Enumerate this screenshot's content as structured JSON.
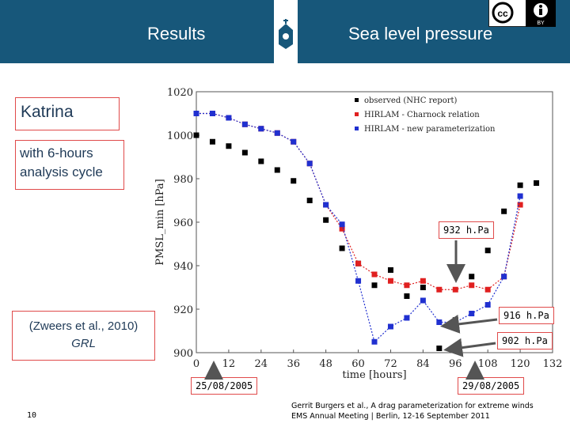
{
  "header": {
    "left_title": "Results",
    "right_title": "Sea level pressure",
    "cc_badge": "cc",
    "by_label": "BY",
    "background": "#17577a"
  },
  "labels": {
    "storm": "Katrina",
    "cycle": "with 6-hours analysis cycle",
    "reference_line1": "(Zweers et al., 2010)",
    "reference_line2": "GRL",
    "date_start": "25/08/2005",
    "date_end": "29/08/2005",
    "pressure_932": "932 h.Pa",
    "pressure_916": "916 h.Pa",
    "pressure_902": "902 h.Pa"
  },
  "footer": {
    "page_number": "10",
    "credit_line1": "Gerrit Burgers et al., A drag parameterization for extreme winds",
    "credit_line2": "EMS Annual Meeting | Berlin, 12-16 September 2011"
  },
  "chart_data": {
    "type": "scatter",
    "xlabel": "time [hours]",
    "ylabel": "PMSL_min [hPa]",
    "xlim": [
      0,
      132
    ],
    "ylim": [
      900,
      1020
    ],
    "xticks": [
      0,
      12,
      24,
      36,
      48,
      60,
      72,
      84,
      96,
      108,
      120,
      132
    ],
    "yticks": [
      900,
      920,
      940,
      960,
      980,
      1000,
      1020
    ],
    "legend_position": "top-right",
    "series": [
      {
        "name": "observed (NHC report)",
        "color": "#000000",
        "x": [
          0,
          6,
          12,
          18,
          24,
          30,
          36,
          42,
          48,
          54,
          60,
          66,
          72,
          78,
          84,
          90,
          96,
          102,
          108,
          114,
          120,
          126
        ],
        "y": [
          1000,
          997,
          995,
          992,
          988,
          984,
          979,
          970,
          961,
          948,
          941,
          931,
          938,
          926,
          930,
          902,
          915,
          935,
          947,
          965,
          977,
          978
        ]
      },
      {
        "name": "HIRLAM - Charnock relation",
        "color": "#e02020",
        "x": [
          0,
          6,
          12,
          18,
          24,
          30,
          36,
          42,
          48,
          54,
          60,
          66,
          72,
          78,
          84,
          90,
          96,
          102,
          108,
          114,
          120
        ],
        "y": [
          1010,
          1010,
          1008,
          1005,
          1003,
          1001,
          997,
          987,
          968,
          957,
          941,
          936,
          933,
          931,
          933,
          929,
          929,
          931,
          929,
          935,
          968
        ]
      },
      {
        "name": "HIRLAM - new parameterization",
        "color": "#2030d0",
        "x": [
          0,
          6,
          12,
          18,
          24,
          30,
          36,
          42,
          48,
          54,
          60,
          66,
          72,
          78,
          84,
          90,
          96,
          102,
          108,
          114,
          120
        ],
        "y": [
          1010,
          1010,
          1008,
          1005,
          1003,
          1001,
          997,
          987,
          968,
          959,
          933,
          905,
          912,
          916,
          924,
          914,
          914,
          918,
          922,
          935,
          972
        ]
      }
    ]
  }
}
